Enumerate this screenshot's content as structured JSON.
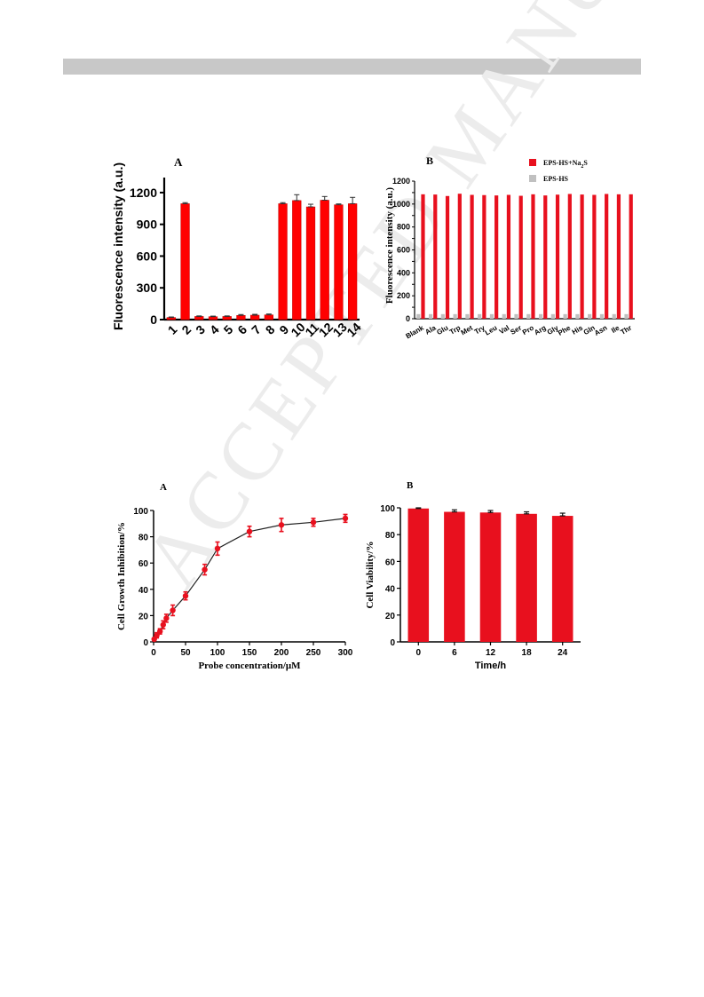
{
  "page": {
    "watermark": "ACCEPTED MANUSCRIPT"
  },
  "chart_data": [
    {
      "type": "bar",
      "panel_label": "A",
      "ylabel": "Fluorescence intensity (a.u.)",
      "xlabel": "",
      "categories": [
        "1",
        "2",
        "3",
        "4",
        "5",
        "6",
        "7",
        "8",
        "9",
        "10",
        "11",
        "12",
        "13",
        "14"
      ],
      "values": [
        20,
        1095,
        30,
        28,
        30,
        40,
        42,
        45,
        1095,
        1125,
        1065,
        1128,
        1085,
        1095
      ],
      "errors": [
        5,
        10,
        5,
        5,
        5,
        8,
        8,
        8,
        10,
        55,
        25,
        35,
        8,
        60
      ],
      "ylim": [
        0,
        1300
      ],
      "yticks": [
        0,
        300,
        600,
        900,
        1200
      ],
      "color": "#ff0000"
    },
    {
      "type": "bar",
      "panel_label": "B",
      "ylabel": "Fluorescence intensity (a.u.)",
      "xlabel": "",
      "categories": [
        "Blank",
        "Ala",
        "Glu",
        "Trp",
        "Met",
        "Try",
        "Leu",
        "Val",
        "Ser",
        "Pro",
        "Arg",
        "Gly",
        "Phe",
        "His",
        "Gln",
        "Asn",
        "Ile",
        "Thr"
      ],
      "series": [
        {
          "name": "EPS-HS+Na2S",
          "color": "#e8101e",
          "values": [
            1085,
            1083,
            1070,
            1090,
            1080,
            1078,
            1075,
            1080,
            1072,
            1085,
            1075,
            1082,
            1088,
            1083,
            1080,
            1088,
            1085,
            1085
          ]
        },
        {
          "name": "EPS-HS",
          "color": "#c0c0c0",
          "values": [
            40,
            40,
            40,
            40,
            40,
            40,
            40,
            40,
            40,
            40,
            40,
            40,
            40,
            40,
            40,
            40,
            40,
            40
          ]
        }
      ],
      "ylim": [
        0,
        1200
      ],
      "yticks": [
        0,
        100,
        200,
        300,
        400,
        500,
        600,
        700,
        800,
        900,
        1000,
        1100,
        1200
      ],
      "legend_position": "top-right"
    },
    {
      "type": "line",
      "panel_label": "A",
      "xlabel": "Probe concentration/μM",
      "ylabel": "Cell Growth Inhibition/%",
      "x": [
        1,
        5,
        10,
        15,
        20,
        30,
        50,
        80,
        100,
        150,
        200,
        250,
        300
      ],
      "y": [
        2,
        5,
        8,
        13,
        18,
        24,
        35,
        55,
        71,
        84,
        89,
        91,
        94
      ],
      "errors": [
        1,
        2,
        2,
        3,
        3,
        4,
        3,
        4,
        5,
        4,
        5,
        3,
        3
      ],
      "xlim": [
        0,
        300
      ],
      "ylim": [
        0,
        100
      ],
      "xticks": [
        0,
        50,
        100,
        150,
        200,
        250,
        300
      ],
      "yticks": [
        0,
        20,
        40,
        60,
        80,
        100
      ],
      "color": "#e8101e"
    },
    {
      "type": "bar",
      "panel_label": "B",
      "xlabel": "Time/h",
      "ylabel": "Cell Viability/%",
      "categories": [
        "0",
        "6",
        "12",
        "18",
        "24"
      ],
      "values": [
        99.5,
        97,
        96.5,
        95.5,
        94
      ],
      "errors": [
        0.5,
        1.5,
        1.5,
        1.5,
        2
      ],
      "ylim": [
        0,
        100
      ],
      "yticks": [
        0,
        20,
        40,
        60,
        80,
        100
      ],
      "color": "#e8101e"
    }
  ]
}
